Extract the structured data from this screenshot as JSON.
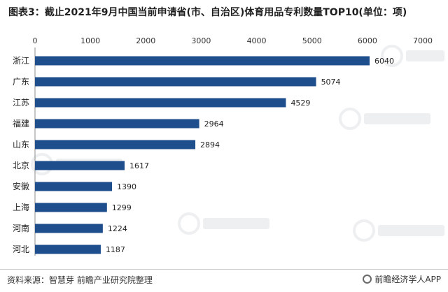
{
  "title": "图表3：截止2021年9月中国当前申请省(市、自治区)体育用品专利数量TOP10(单位：项)",
  "chart_data": {
    "type": "bar",
    "orientation": "horizontal",
    "categories": [
      "浙江",
      "广东",
      "江苏",
      "福建",
      "山东",
      "北京",
      "安徽",
      "上海",
      "河南",
      "河北"
    ],
    "values": [
      6040,
      5074,
      4529,
      2964,
      2894,
      1617,
      1390,
      1299,
      1224,
      1187
    ],
    "xlim": [
      0,
      7000
    ],
    "x_ticks": [
      0,
      1000,
      2000,
      3000,
      4000,
      5000,
      6000,
      7000
    ],
    "x_axis_position": "top",
    "grid": false,
    "bar_color": "#1f4e8c",
    "data_labels": true
  },
  "footer": {
    "source": "资料来源：智慧芽 前瞻产业研究院整理",
    "brand": "前瞻经济学人APP"
  }
}
